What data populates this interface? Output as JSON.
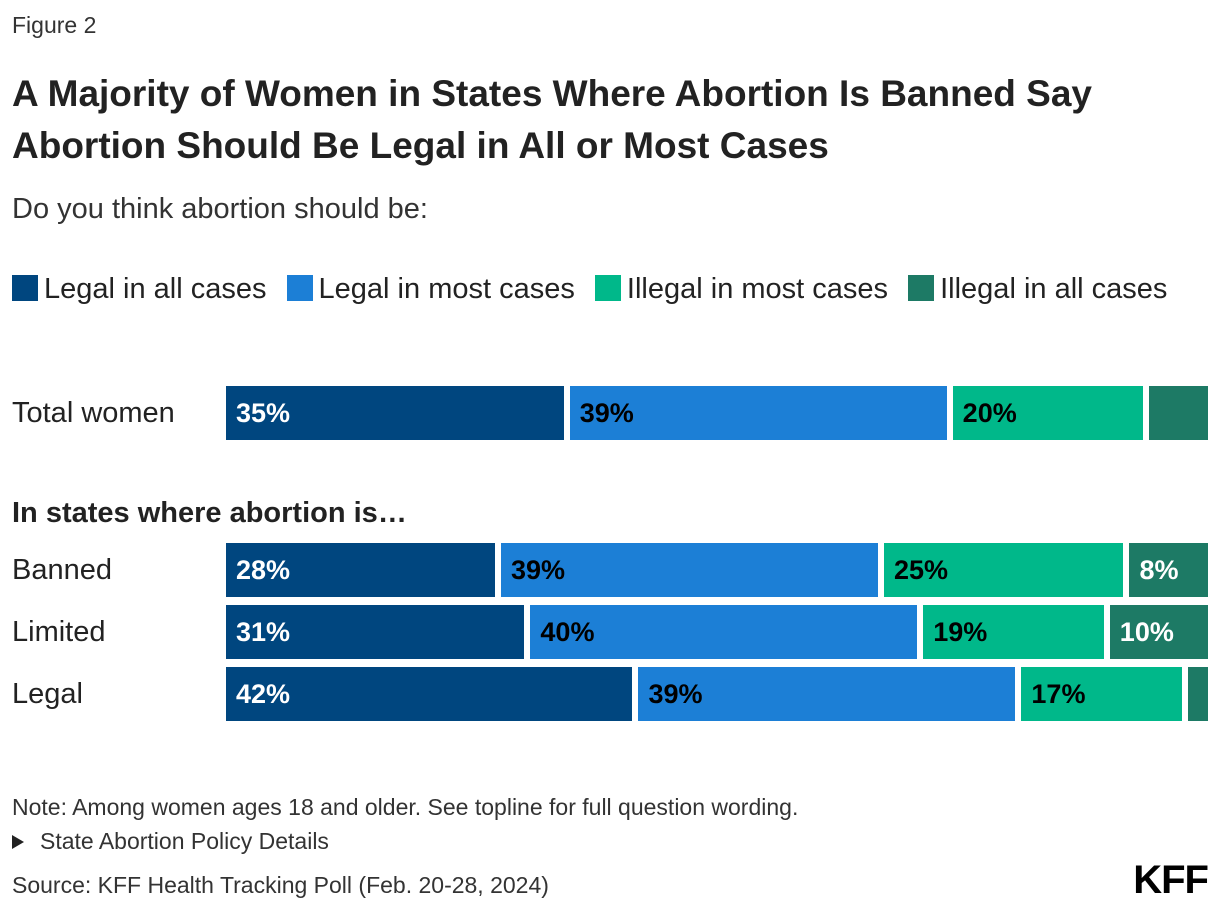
{
  "figure_label": "Figure 2",
  "title": "A Majority of Women in States Where Abortion Is Banned Say Abortion Should Be Legal in All or Most Cases",
  "subtitle": "Do you think abortion should be:",
  "group_label": "In states where abortion is…",
  "note": "Note: Among women ages 18 and older. See topline for full question wording.",
  "details_toggle": "State Abortion Policy Details",
  "source": "Source: KFF Health Tracking Poll (Feb. 20-28, 2024)",
  "logo": "KFF",
  "colors": {
    "legal_all": "#00467f",
    "legal_most": "#1c7fd6",
    "illegal_most": "#00b88a",
    "illegal_all": "#1d7a65"
  },
  "chart_data": {
    "type": "bar",
    "orientation": "horizontal",
    "stacked": true,
    "title": "A Majority of Women in States Where Abortion Is Banned Say Abortion Should Be Legal in All or Most Cases",
    "subtitle": "Do you think abortion should be:",
    "legend_position": "top",
    "categories": [
      "Total women",
      "Banned",
      "Limited",
      "Legal"
    ],
    "series": [
      {
        "name": "Legal in all cases",
        "values": [
          35,
          28,
          31,
          42
        ],
        "labels": [
          "35%",
          "28%",
          "31%",
          "42%"
        ],
        "color": "#00467f",
        "label_color": "#ffffff"
      },
      {
        "name": "Legal in most cases",
        "values": [
          39,
          39,
          40,
          39
        ],
        "labels": [
          "39%",
          "39%",
          "40%",
          "39%"
        ],
        "color": "#1c7fd6",
        "label_color": "#000000"
      },
      {
        "name": "Illegal in most cases",
        "values": [
          20,
          25,
          19,
          17
        ],
        "labels": [
          "20%",
          "25%",
          "19%",
          "17%"
        ],
        "color": "#00b88a",
        "label_color": "#000000"
      },
      {
        "name": "Illegal in all cases",
        "values": [
          6,
          8,
          10,
          2
        ],
        "labels": [
          "",
          "8%",
          "10%",
          ""
        ],
        "color": "#1d7a65",
        "label_color": "#ffffff"
      }
    ],
    "xlim": [
      0,
      100
    ],
    "grid": false
  }
}
